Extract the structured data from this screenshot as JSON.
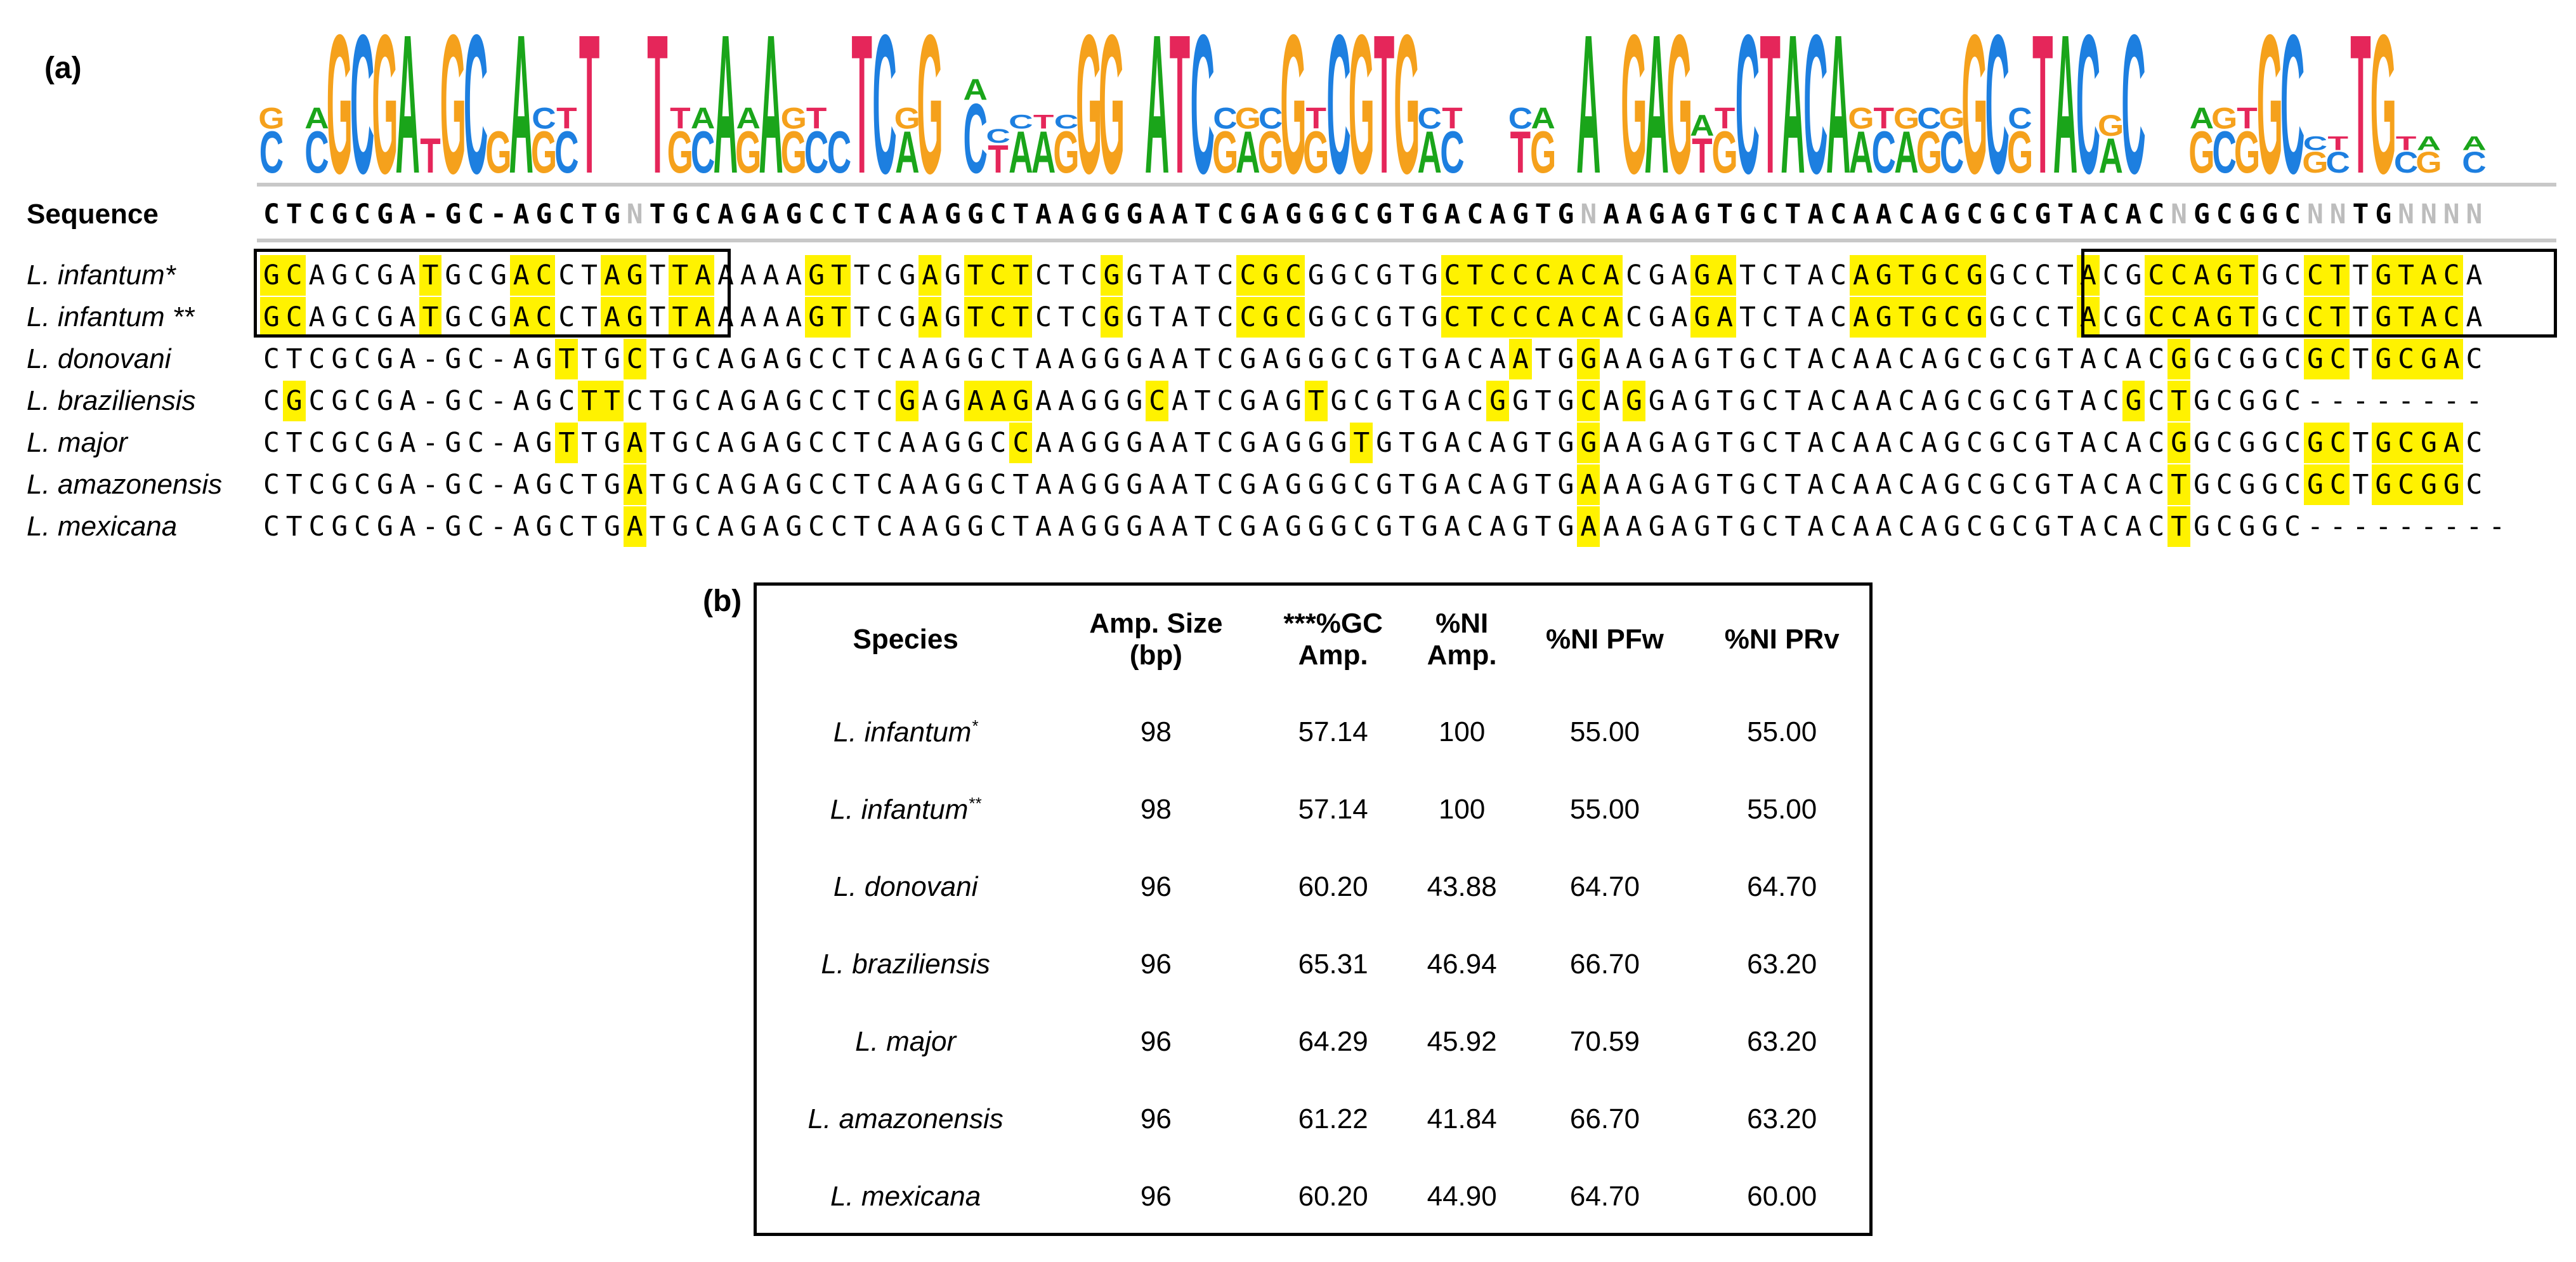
{
  "panel_a_label": "(a)",
  "panel_b_label": "(b)",
  "consensus_label": "Sequence",
  "consensus_sequence": "CTCGCGA-GC-AGCTGNTGCAGAGCCTCAAGGCTAAGGGAATCGAGGGCGTGACAGTGNAAGAGTGCTACAACAGCGCGTACACNGCGGCNNTGNNNN",
  "logo_columns": [
    [
      [
        "C",
        0.3
      ],
      [
        "G",
        0.15
      ]
    ],
    [],
    [
      [
        "C",
        0.3
      ],
      [
        "A",
        0.15
      ]
    ],
    [
      [
        "G",
        1
      ]
    ],
    [
      [
        "C",
        1
      ]
    ],
    [
      [
        "G",
        1
      ]
    ],
    [
      [
        "A",
        1
      ]
    ],
    [
      [
        "T",
        0.25
      ]
    ],
    [
      [
        "G",
        1
      ]
    ],
    [
      [
        "C",
        1
      ]
    ],
    [
      [
        "G",
        0.3
      ]
    ],
    [
      [
        "A",
        1
      ]
    ],
    [
      [
        "G",
        0.3
      ],
      [
        "C",
        0.15
      ]
    ],
    [
      [
        "C",
        0.3
      ],
      [
        "T",
        0.15
      ]
    ],
    [
      [
        "T",
        1
      ]
    ],
    [],
    [],
    [
      [
        "T",
        1
      ]
    ],
    [
      [
        "G",
        0.3
      ],
      [
        "T",
        0.15
      ]
    ],
    [
      [
        "C",
        0.3
      ],
      [
        "A",
        0.15
      ]
    ],
    [
      [
        "A",
        1
      ]
    ],
    [
      [
        "G",
        0.3
      ],
      [
        "A",
        0.15
      ]
    ],
    [
      [
        "A",
        1
      ]
    ],
    [
      [
        "G",
        0.3
      ],
      [
        "G",
        0.15
      ]
    ],
    [
      [
        "C",
        0.3
      ],
      [
        "T",
        0.15
      ]
    ],
    [
      [
        "C",
        0.3
      ]
    ],
    [
      [
        "T",
        1
      ]
    ],
    [
      [
        "C",
        1
      ]
    ],
    [
      [
        "A",
        0.3
      ],
      [
        "G",
        0.15
      ]
    ],
    [
      [
        "G",
        1
      ]
    ],
    [],
    [
      [
        "C",
        0.5
      ],
      [
        "A",
        0.15
      ]
    ],
    [
      [
        "T",
        0.2
      ],
      [
        "C",
        0.1
      ]
    ],
    [
      [
        "A",
        0.3
      ],
      [
        "C",
        0.1
      ]
    ],
    [
      [
        "A",
        0.3
      ],
      [
        "T",
        0.1
      ]
    ],
    [
      [
        "G",
        0.3
      ],
      [
        "C",
        0.1
      ]
    ],
    [
      [
        "G",
        1
      ]
    ],
    [
      [
        "G",
        1
      ]
    ],
    [],
    [
      [
        "A",
        1
      ]
    ],
    [
      [
        "T",
        1
      ]
    ],
    [
      [
        "C",
        1
      ]
    ],
    [
      [
        "G",
        0.3
      ],
      [
        "C",
        0.15
      ]
    ],
    [
      [
        "A",
        0.3
      ],
      [
        "G",
        0.15
      ]
    ],
    [
      [
        "G",
        0.3
      ],
      [
        "C",
        0.15
      ]
    ],
    [
      [
        "G",
        1
      ]
    ],
    [
      [
        "G",
        0.3
      ],
      [
        "T",
        0.15
      ]
    ],
    [
      [
        "C",
        1
      ]
    ],
    [
      [
        "G",
        1
      ]
    ],
    [
      [
        "T",
        1
      ]
    ],
    [
      [
        "G",
        1
      ]
    ],
    [
      [
        "A",
        0.3
      ],
      [
        "C",
        0.15
      ]
    ],
    [
      [
        "C",
        0.3
      ],
      [
        "T",
        0.15
      ]
    ],
    [],
    [],
    [
      [
        "T",
        0.3
      ],
      [
        "C",
        0.15
      ]
    ],
    [
      [
        "G",
        0.3
      ],
      [
        "A",
        0.15
      ]
    ],
    [],
    [
      [
        "A",
        1
      ]
    ],
    [],
    [
      [
        "G",
        1
      ]
    ],
    [
      [
        "A",
        1
      ]
    ],
    [
      [
        "G",
        1
      ]
    ],
    [
      [
        "T",
        0.25
      ],
      [
        "A",
        0.15
      ]
    ],
    [
      [
        "G",
        0.3
      ],
      [
        "T",
        0.15
      ]
    ],
    [
      [
        "C",
        1
      ]
    ],
    [
      [
        "T",
        1
      ]
    ],
    [
      [
        "A",
        1
      ]
    ],
    [
      [
        "C",
        1
      ]
    ],
    [
      [
        "A",
        1
      ]
    ],
    [
      [
        "A",
        0.3
      ],
      [
        "G",
        0.15
      ]
    ],
    [
      [
        "C",
        0.3
      ],
      [
        "T",
        0.15
      ]
    ],
    [
      [
        "A",
        0.3
      ],
      [
        "G",
        0.15
      ]
    ],
    [
      [
        "G",
        0.3
      ],
      [
        "C",
        0.15
      ]
    ],
    [
      [
        "C",
        0.3
      ],
      [
        "G",
        0.15
      ]
    ],
    [
      [
        "G",
        1
      ]
    ],
    [
      [
        "C",
        1
      ]
    ],
    [
      [
        "G",
        0.3
      ],
      [
        "C",
        0.15
      ]
    ],
    [
      [
        "T",
        1
      ]
    ],
    [
      [
        "A",
        1
      ]
    ],
    [
      [
        "C",
        1
      ]
    ],
    [
      [
        "A",
        0.25
      ],
      [
        "G",
        0.15
      ]
    ],
    [
      [
        "C",
        1
      ]
    ],
    [],
    [],
    [
      [
        "G",
        0.3
      ],
      [
        "A",
        0.15
      ]
    ],
    [
      [
        "C",
        0.3
      ],
      [
        "G",
        0.15
      ]
    ],
    [
      [
        "G",
        0.3
      ],
      [
        "T",
        0.15
      ]
    ],
    [
      [
        "G",
        1
      ]
    ],
    [
      [
        "C",
        1
      ]
    ],
    [
      [
        "G",
        0.15
      ],
      [
        "C",
        0.1
      ]
    ],
    [
      [
        "C",
        0.15
      ],
      [
        "T",
        0.1
      ]
    ],
    [
      [
        "T",
        1
      ]
    ],
    [
      [
        "G",
        1
      ]
    ],
    [
      [
        "C",
        0.15
      ],
      [
        "T",
        0.1
      ]
    ],
    [
      [
        "G",
        0.15
      ],
      [
        "A",
        0.1
      ]
    ],
    [],
    [
      [
        "C",
        0.15
      ],
      [
        "A",
        0.1
      ]
    ]
  ],
  "base_colors": {
    "A": "#1aa51a",
    "C": "#1d7fe0",
    "G": "#f5a11c",
    "T": "#e5265a"
  },
  "alignment_rows": [
    {
      "label": "L. infantum*",
      "seq": "GCAGCGATGCGACCTAGTTAAAAAGTTCGAGTCTCTCGGTATCCGCGGCGTGCTCCCACACGAGATCTACAGTGCGGCCTACGCCAGTGCCTTGTACA",
      "hl": [
        0,
        1,
        7,
        11,
        12,
        15,
        16,
        18,
        19,
        24,
        25,
        29,
        31,
        32,
        33,
        37,
        43,
        44,
        45,
        52,
        53,
        54,
        55,
        56,
        57,
        58,
        59,
        63,
        64,
        70,
        71,
        72,
        73,
        74,
        75,
        80,
        83,
        84,
        85,
        86,
        87,
        90,
        91,
        93,
        94,
        95,
        96
      ]
    },
    {
      "label": "L. infantum **",
      "seq": "GCAGCGATGCGACCTAGTTAAAAAGTTCGAGTCTCTCGGTATCCGCGGCGTGCTCCCACACGAGATCTACAGTGCGGCCTACGCCAGTGCCTTGTACA",
      "hl": [
        0,
        1,
        7,
        11,
        12,
        15,
        16,
        18,
        19,
        24,
        25,
        29,
        31,
        32,
        33,
        37,
        43,
        44,
        45,
        52,
        53,
        54,
        55,
        56,
        57,
        58,
        59,
        63,
        64,
        70,
        71,
        72,
        73,
        74,
        75,
        80,
        83,
        84,
        85,
        86,
        87,
        90,
        91,
        93,
        94,
        95,
        96
      ]
    },
    {
      "label": "L. donovani",
      "seq": "CTCGCGA-GC-AGTTGCTGCAGAGCCTCAAGGCTAAGGGAATCGAGGGCGTGACAATGGAAGAGTGCTACAACAGCGCGTACACGGCGGCGCTGCGAC",
      "hl": [
        13,
        16,
        55,
        58,
        84,
        90,
        91,
        93,
        94,
        95,
        96
      ]
    },
    {
      "label": "L. braziliensis",
      "seq": "CGCGCGA-GC-AGCTTCTGCAGAGCCTCGAGAAGAAGGGCATCGAGTGCGTGACGGTGCAGGAGTGCTACAACAGCGCGTACGCTGCGGC--------",
      "hl": [
        1,
        14,
        15,
        28,
        31,
        32,
        33,
        39,
        46,
        54,
        58,
        60,
        82,
        84
      ]
    },
    {
      "label": "L. major",
      "seq": "CTCGCGA-GC-AGTTGATGCAGAGCCTCAAGGCCAAGGGAATCGAGGGTGTGACAGTGGAAGAGTGCTACAACAGCGCGTACACGGCGGCGCTGCGAC",
      "hl": [
        13,
        16,
        33,
        48,
        58,
        84,
        90,
        91,
        93,
        94,
        95,
        96
      ]
    },
    {
      "label": "L. amazonensis",
      "seq": "CTCGCGA-GC-AGCTGATGCAGAGCCTCAAGGCTAAGGGAATCGAGGGCGTGACAGTGAAAGAGTGCTACAACAGCGCGTACACTGCGGCGCTGCGGC",
      "hl": [
        16,
        58,
        84,
        90,
        91,
        93,
        94,
        95,
        96
      ]
    },
    {
      "label": "L. mexicana",
      "seq": "CTCGCGA-GC-AGCTGATGCAGAGCCTCAAGGCTAAGGGAATCGAGGGCGTGACAGTGAAAGAGTGCTACAACAGCGCGTACACTGCGGC---------",
      "hl": [
        16,
        58,
        84
      ]
    }
  ],
  "table": {
    "headers": [
      "Species",
      "Amp. Size\n(bp)",
      "***%GC\nAmp.",
      "%NI\nAmp.",
      "%NI PFw",
      "%NI PRv"
    ],
    "rows": [
      {
        "species": "L. infantum",
        "sup": "*",
        "values": [
          "98",
          "57.14",
          "100",
          "55.00",
          "55.00"
        ]
      },
      {
        "species": "L. infantum",
        "sup": "**",
        "values": [
          "98",
          "57.14",
          "100",
          "55.00",
          "55.00"
        ]
      },
      {
        "species": "L. donovani",
        "sup": "",
        "values": [
          "96",
          "60.20",
          "43.88",
          "64.70",
          "64.70"
        ]
      },
      {
        "species": "L. braziliensis",
        "sup": "",
        "values": [
          "96",
          "65.31",
          "46.94",
          "66.70",
          "63.20"
        ]
      },
      {
        "species": "L. major",
        "sup": "",
        "values": [
          "96",
          "64.29",
          "45.92",
          "70.59",
          "63.20"
        ]
      },
      {
        "species": "L. amazonensis",
        "sup": "",
        "values": [
          "96",
          "61.22",
          "41.84",
          "66.70",
          "63.20"
        ]
      },
      {
        "species": "L. mexicana",
        "sup": "",
        "values": [
          "96",
          "60.20",
          "44.90",
          "64.70",
          "60.00"
        ]
      }
    ]
  }
}
